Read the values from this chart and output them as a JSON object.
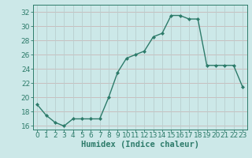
{
  "x": [
    0,
    1,
    2,
    3,
    4,
    5,
    6,
    7,
    8,
    9,
    10,
    11,
    12,
    13,
    14,
    15,
    16,
    17,
    18,
    19,
    20,
    21,
    22,
    23
  ],
  "y": [
    19,
    17.5,
    16.5,
    16,
    17,
    17,
    17,
    17,
    20,
    23.5,
    25.5,
    26,
    26.5,
    28.5,
    29,
    31.5,
    31.5,
    31,
    31,
    24.5,
    24.5,
    24.5,
    24.5,
    21.5
  ],
  "xlabel": "Humidex (Indice chaleur)",
  "xlim": [
    -0.5,
    23.5
  ],
  "ylim": [
    15.5,
    33
  ],
  "yticks": [
    16,
    18,
    20,
    22,
    24,
    26,
    28,
    30,
    32
  ],
  "xticks": [
    0,
    1,
    2,
    3,
    4,
    5,
    6,
    7,
    8,
    9,
    10,
    11,
    12,
    13,
    14,
    15,
    16,
    17,
    18,
    19,
    20,
    21,
    22,
    23
  ],
  "line_color": "#2d7b6a",
  "marker_color": "#2d7b6a",
  "bg_color": "#cce8e8",
  "grid_color_h": "#c8b8b8",
  "grid_color_v": "#b8cece",
  "axis_color": "#2d7b6a",
  "tick_label_fontsize": 6.5,
  "xlabel_fontsize": 7.5
}
